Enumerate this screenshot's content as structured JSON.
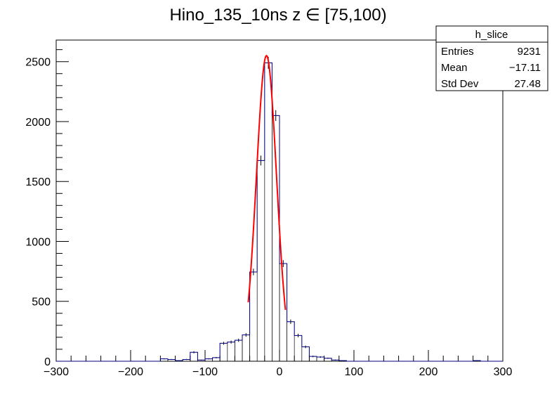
{
  "chart_data": {
    "type": "bar",
    "title": "Hino_135_10ns z  ∈ [75,100)",
    "xlabel": "",
    "ylabel": "",
    "xlim": [
      -300,
      300
    ],
    "ylim": [
      0,
      2680
    ],
    "x_ticks": [
      -300,
      -200,
      -100,
      0,
      100,
      200,
      300
    ],
    "y_ticks": [
      0,
      500,
      1000,
      1500,
      2000,
      2500
    ],
    "bin_width": 10,
    "bins": [
      {
        "x0": -160,
        "x1": -150,
        "value": 20
      },
      {
        "x0": -150,
        "x1": -140,
        "value": 15
      },
      {
        "x0": -140,
        "x1": -130,
        "value": 5
      },
      {
        "x0": -130,
        "x1": -120,
        "value": 15
      },
      {
        "x0": -120,
        "x1": -110,
        "value": 75
      },
      {
        "x0": -110,
        "x1": -100,
        "value": 10
      },
      {
        "x0": -100,
        "x1": -90,
        "value": 20
      },
      {
        "x0": -90,
        "x1": -80,
        "value": 30
      },
      {
        "x0": -80,
        "x1": -70,
        "value": 150
      },
      {
        "x0": -70,
        "x1": -60,
        "value": 160
      },
      {
        "x0": -60,
        "x1": -50,
        "value": 175
      },
      {
        "x0": -50,
        "x1": -40,
        "value": 220
      },
      {
        "x0": -40,
        "x1": -30,
        "value": 745
      },
      {
        "x0": -30,
        "x1": -20,
        "value": 1675
      },
      {
        "x0": -20,
        "x1": -10,
        "value": 2490
      },
      {
        "x0": -10,
        "x1": 0,
        "value": 2050
      },
      {
        "x0": 0,
        "x1": 10,
        "value": 815
      },
      {
        "x0": 10,
        "x1": 20,
        "value": 330
      },
      {
        "x0": 20,
        "x1": 30,
        "value": 215
      },
      {
        "x0": 30,
        "x1": 40,
        "value": 120
      },
      {
        "x0": 40,
        "x1": 50,
        "value": 40
      },
      {
        "x0": 50,
        "x1": 60,
        "value": 35
      },
      {
        "x0": 60,
        "x1": 70,
        "value": 25
      },
      {
        "x0": 70,
        "x1": 80,
        "value": 10
      },
      {
        "x0": 80,
        "x1": 90,
        "value": 5
      },
      {
        "x0": 260,
        "x1": 270,
        "value": 5
      }
    ],
    "fit": {
      "type": "gaussian",
      "amplitude": 2550,
      "mean": -17.5,
      "sigma": 13.5,
      "range": [
        -42,
        8
      ],
      "color": "#ff0000"
    },
    "histogram_color": "#000080",
    "stats_box": {
      "name": "h_slice",
      "rows": [
        {
          "label": "Entries",
          "value": "9231"
        },
        {
          "label": "Mean",
          "value": "−17.11"
        },
        {
          "label": "Std Dev",
          "value": "27.48"
        }
      ]
    },
    "legend_position": "top-right",
    "grid": false
  }
}
